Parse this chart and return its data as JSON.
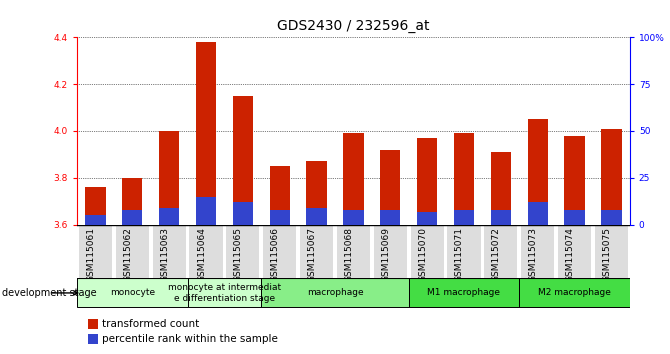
{
  "title": "GDS2430 / 232596_at",
  "samples": [
    "GSM115061",
    "GSM115062",
    "GSM115063",
    "GSM115064",
    "GSM115065",
    "GSM115066",
    "GSM115067",
    "GSM115068",
    "GSM115069",
    "GSM115070",
    "GSM115071",
    "GSM115072",
    "GSM115073",
    "GSM115074",
    "GSM115075"
  ],
  "transformed_count": [
    3.76,
    3.8,
    4.0,
    4.38,
    4.15,
    3.85,
    3.87,
    3.99,
    3.92,
    3.97,
    3.99,
    3.91,
    4.05,
    3.98,
    4.01
  ],
  "percentile_rank_pct": [
    5,
    8,
    9,
    15,
    12,
    8,
    9,
    8,
    8,
    7,
    8,
    8,
    12,
    8,
    8
  ],
  "bar_bottom": 3.6,
  "ylim_left": [
    3.6,
    4.4
  ],
  "ylim_right": [
    0,
    100
  ],
  "yticks_left": [
    3.6,
    3.8,
    4.0,
    4.2,
    4.4
  ],
  "yticks_right": [
    0,
    25,
    50,
    75,
    100
  ],
  "ytick_labels_right": [
    "0",
    "25",
    "50",
    "75",
    "100%"
  ],
  "bar_color_red": "#cc2200",
  "bar_color_blue": "#3344cc",
  "stage_defs": [
    {
      "label": "monocyte",
      "start": 0,
      "end": 2,
      "color": "#ccffcc"
    },
    {
      "label": "monocyte at intermediat\ne differentiation stage",
      "start": 3,
      "end": 4,
      "color": "#ccffcc"
    },
    {
      "label": "macrophage",
      "start": 5,
      "end": 8,
      "color": "#88ee88"
    },
    {
      "label": "M1 macrophage",
      "start": 9,
      "end": 11,
      "color": "#44dd44"
    },
    {
      "label": "M2 macrophage",
      "start": 12,
      "end": 14,
      "color": "#44dd44"
    }
  ],
  "legend_items": [
    {
      "label": "transformed count",
      "color": "#cc2200"
    },
    {
      "label": "percentile rank within the sample",
      "color": "#3344cc"
    }
  ],
  "title_fontsize": 10,
  "tick_fontsize": 6.5,
  "stage_fontsize": 6.5
}
